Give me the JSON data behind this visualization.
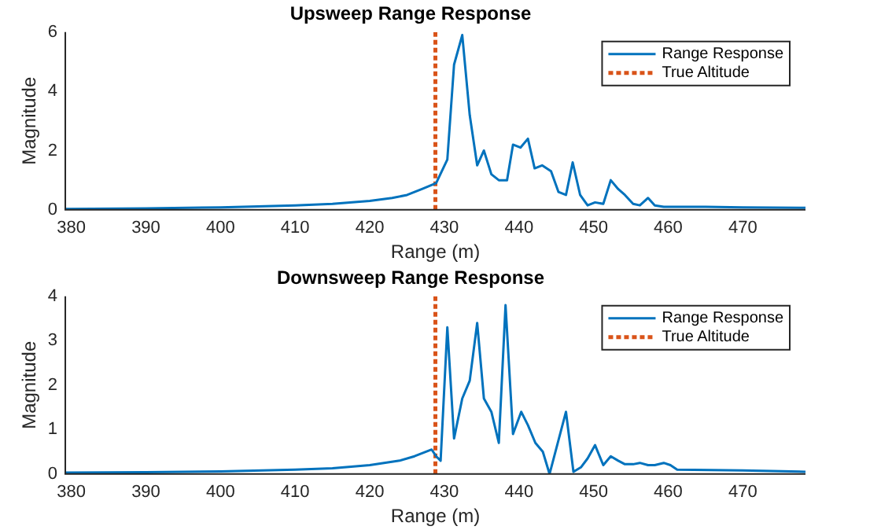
{
  "chart_data": [
    {
      "type": "line",
      "title": "Upsweep Range Response",
      "xlabel": "Range (m)",
      "ylabel": "Magnitude",
      "xlim": [
        379.2,
        478.4
      ],
      "xticks": [
        380,
        390,
        400,
        410,
        420,
        430,
        440,
        450,
        460,
        470
      ],
      "ylim": [
        0,
        6
      ],
      "yticks": [
        0,
        2,
        4,
        6
      ],
      "grid": false,
      "legend": "top right",
      "line_style": "solid",
      "marker": "none",
      "series": [
        {
          "name": "Range Response",
          "color": "#0072bd",
          "x": [
            379.2,
            390,
            400,
            410,
            415,
            420,
            423,
            425,
            427,
            428.9,
            430.4,
            431.3,
            432.4,
            433.4,
            434.4,
            435.3,
            436.3,
            437.3,
            438.4,
            439.2,
            440.2,
            441.2,
            442.1,
            443.1,
            444.3,
            445.3,
            446.3,
            447.2,
            448.2,
            449.2,
            450.2,
            451.3,
            452.3,
            453.3,
            454.2,
            455.3,
            456.2,
            457.3,
            458.2,
            459.4,
            465,
            470,
            478.4
          ],
          "values": [
            0.03,
            0.05,
            0.08,
            0.15,
            0.2,
            0.3,
            0.4,
            0.5,
            0.7,
            0.9,
            1.7,
            4.9,
            5.9,
            3.2,
            1.5,
            2.0,
            1.2,
            1.0,
            1.0,
            2.2,
            2.1,
            2.4,
            1.4,
            1.5,
            1.3,
            0.6,
            0.5,
            1.6,
            0.5,
            0.15,
            0.25,
            0.2,
            1.0,
            0.7,
            0.5,
            0.2,
            0.15,
            0.4,
            0.15,
            0.1,
            0.1,
            0.08,
            0.07
          ]
        },
        {
          "name": "True Altitude",
          "color": "#d95319",
          "line_style": "dotted",
          "x": [
            428.8,
            428.8
          ],
          "values": [
            0,
            6
          ]
        }
      ]
    },
    {
      "type": "line",
      "title": "Downsweep Range Response",
      "xlabel": "Range (m)",
      "ylabel": "Magnitude",
      "xlim": [
        379.2,
        478.4
      ],
      "xticks": [
        380,
        390,
        400,
        410,
        420,
        430,
        440,
        450,
        460,
        470
      ],
      "ylim": [
        0,
        4
      ],
      "yticks": [
        0,
        1,
        2,
        3,
        4
      ],
      "grid": false,
      "legend": "top right",
      "line_style": "solid",
      "marker": "none",
      "series": [
        {
          "name": "Range Response",
          "color": "#0072bd",
          "x": [
            379.2,
            390,
            400,
            410,
            415,
            420,
            424,
            426,
            428.3,
            428.9,
            429.5,
            430.4,
            431.3,
            432.4,
            433.4,
            434.4,
            435.3,
            436.3,
            437.3,
            438.2,
            439.2,
            440.3,
            441.2,
            442.2,
            443.2,
            444.1,
            446.3,
            447.3,
            448.3,
            449.2,
            450.2,
            451.3,
            452.3,
            453.3,
            454.2,
            455.3,
            456.2,
            457.3,
            458.2,
            459.4,
            460.3,
            461.2,
            470,
            478.4
          ],
          "values": [
            0.03,
            0.04,
            0.06,
            0.1,
            0.13,
            0.2,
            0.3,
            0.4,
            0.55,
            0.4,
            0.3,
            3.3,
            0.8,
            1.7,
            2.1,
            3.4,
            1.7,
            1.4,
            0.7,
            3.8,
            0.9,
            1.4,
            1.1,
            0.7,
            0.5,
            0.0,
            1.4,
            0.05,
            0.15,
            0.35,
            0.65,
            0.2,
            0.4,
            0.3,
            0.22,
            0.22,
            0.25,
            0.2,
            0.2,
            0.25,
            0.2,
            0.1,
            0.08,
            0.05
          ]
        },
        {
          "name": "True Altitude",
          "color": "#d95319",
          "line_style": "dotted",
          "x": [
            428.8,
            428.8
          ],
          "values": [
            0,
            4
          ]
        }
      ]
    }
  ]
}
